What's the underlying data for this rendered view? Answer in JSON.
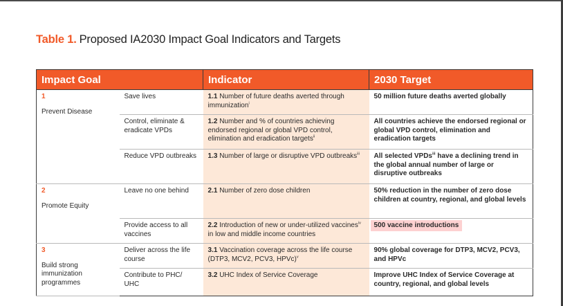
{
  "title": {
    "lead": "Table 1.",
    "text": "Proposed IA2030 Impact Goal Indicators and Targets"
  },
  "headers": [
    "Impact Goal",
    "Indicator",
    "2030 Target"
  ],
  "goals": [
    {
      "num": "1",
      "label": "Prevent Disease"
    },
    {
      "num": "2",
      "label": "Promote Equity"
    },
    {
      "num": "3",
      "label": "Build strong immunization programmes"
    }
  ],
  "rows": [
    {
      "sub": "Save lives",
      "ind_num": "1.1",
      "ind_text": "Number of future deaths averted through immunization",
      "ind_sup": "i",
      "target": "50 million future deaths averted globally"
    },
    {
      "sub": "Control, eliminate & eradicate VPDs",
      "ind_num": "1.2",
      "ind_text": "Number and % of countries achieving endorsed regional or global VPD control, elimination and eradication targets",
      "ind_sup": "ii",
      "target": "All countries achieve the endorsed regional or global VPD control, elimination and eradication targets"
    },
    {
      "sub": "Reduce VPD outbreaks",
      "ind_num": "1.3",
      "ind_text": "Number of large or disruptive VPD outbreaks",
      "ind_sup": "iii",
      "target_pre": "All selected VPDs",
      "target_sup": "iii",
      "target": "have a declining trend in the global annual number of large or disruptive outbreaks"
    },
    {
      "sub": "Leave no one behind",
      "ind_num": "2.1",
      "ind_text": "Number of zero dose children",
      "target": "50% reduction in the number of zero dose children at country, regional, and global levels"
    },
    {
      "sub": "Provide access to all vaccines",
      "ind_num": "2.2",
      "ind_text": "Introduction of new or under-utilized vaccines",
      "ind_sup": "iv",
      "ind_text2": "in low and middle income countries",
      "target": "500 vaccine introductions"
    },
    {
      "sub": "Deliver across the life course",
      "ind_num": "3.1",
      "ind_text": "Vaccination coverage across the life course (DTP3, MCV2, PCV3, HPVc)",
      "ind_sup": "v",
      "target": "90% global coverage for DTP3, MCV2, PCV3, and HPVc"
    },
    {
      "sub": "Contribute to PHC/ UHC",
      "ind_num": "3.2",
      "ind_text": "UHC Index of Service Coverage",
      "target": "Improve UHC Index of Service Coverage at country, regional, and global levels"
    }
  ]
}
